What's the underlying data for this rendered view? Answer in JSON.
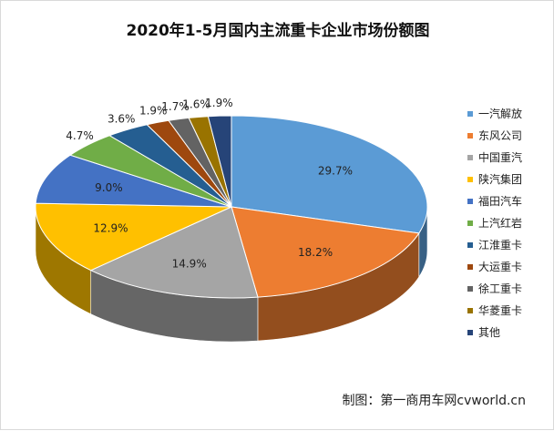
{
  "title": "2020年1-5月国内主流重卡企业市场份额图",
  "credit": "制图：第一商用车网cvworld.cn",
  "chart_data": {
    "type": "pie",
    "title": "2020年1-5月国内主流重卡企业市场份额图",
    "value_unit": "%",
    "legend_position": "right",
    "slices": [
      {
        "label": "一汽解放",
        "value": 29.7,
        "display": "29.7%",
        "color": "#5b9bd5"
      },
      {
        "label": "东风公司",
        "value": 18.2,
        "display": "18.2%",
        "color": "#ed7d31"
      },
      {
        "label": "中国重汽",
        "value": 14.9,
        "display": "14.9%",
        "color": "#a5a5a5"
      },
      {
        "label": "陕汽集团",
        "value": 12.9,
        "display": "12.9%",
        "color": "#ffc000"
      },
      {
        "label": "福田汽车",
        "value": 9.0,
        "display": "9.0%",
        "color": "#4472c4"
      },
      {
        "label": "上汽红岩",
        "value": 4.7,
        "display": "4.7%",
        "color": "#70ad47"
      },
      {
        "label": "江淮重卡",
        "value": 3.6,
        "display": "3.6%",
        "color": "#255e91"
      },
      {
        "label": "大运重卡",
        "value": 1.9,
        "display": "1.9%",
        "color": "#9e480e"
      },
      {
        "label": "徐工重卡",
        "value": 1.7,
        "display": "1.7%",
        "color": "#636363"
      },
      {
        "label": "华菱重卡",
        "value": 1.6,
        "display": "1.6%",
        "color": "#997300"
      },
      {
        "label": "其他",
        "value": 1.9,
        "display": "1.9%",
        "color": "#264478"
      }
    ]
  }
}
